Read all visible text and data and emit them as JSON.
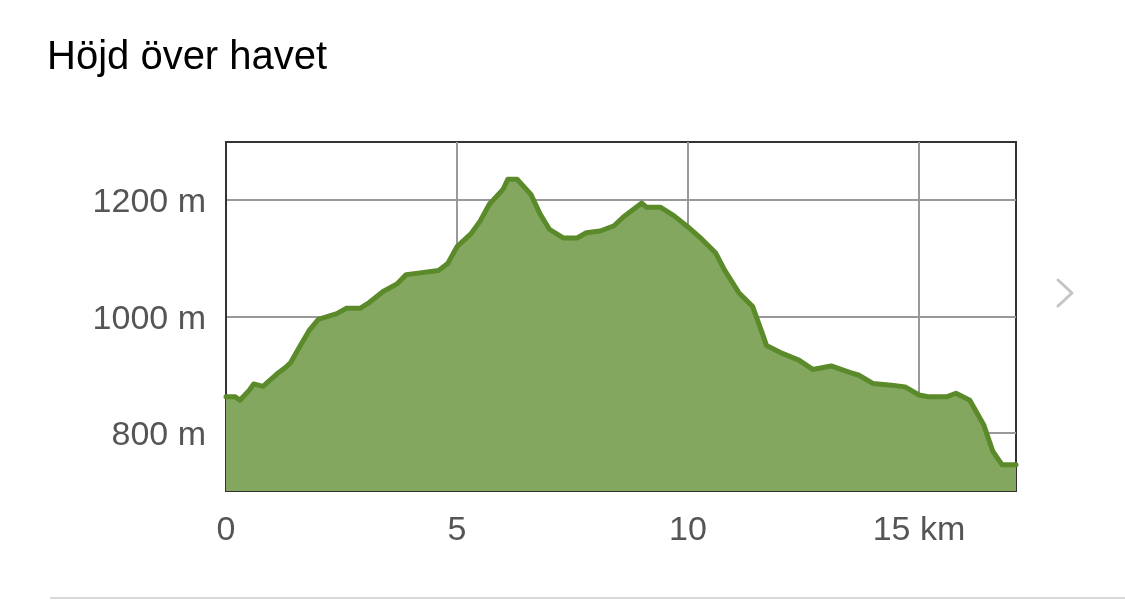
{
  "chart_data": {
    "type": "area",
    "title": "Höjd över havet",
    "x": [
      0,
      0.2,
      0.3,
      0.5,
      0.6,
      0.8,
      1.1,
      1.3,
      1.4,
      1.6,
      1.8,
      2.0,
      2.4,
      2.6,
      2.9,
      3.1,
      3.4,
      3.7,
      3.9,
      4.2,
      4.6,
      4.8,
      5.0,
      5.3,
      5.5,
      5.7,
      6.0,
      6.1,
      6.3,
      6.6,
      6.8,
      7.0,
      7.3,
      7.6,
      7.8,
      8.1,
      8.4,
      8.6,
      9.0,
      9.1,
      9.4,
      9.7,
      10.0,
      10.3,
      10.6,
      10.8,
      11.1,
      11.4,
      11.6,
      11.7,
      12.0,
      12.4,
      12.7,
      13.1,
      13.5,
      13.7,
      14.0,
      14.4,
      14.7,
      15.0,
      15.2,
      15.6,
      15.8,
      16.1,
      16.4,
      16.6,
      16.8,
      17.1
    ],
    "series": [
      {
        "color": "#5a8a2a",
        "values": [
          862,
          862,
          856,
          873,
          884,
          880,
          901,
          913,
          921,
          949,
          976,
          995,
          1005,
          1014,
          1014,
          1024,
          1043,
          1056,
          1072,
          1075,
          1079,
          1091,
          1120,
          1142,
          1164,
          1193,
          1219,
          1236,
          1236,
          1210,
          1176,
          1150,
          1135,
          1135,
          1144,
          1147,
          1156,
          1171,
          1195,
          1188,
          1188,
          1173,
          1154,
          1133,
          1109,
          1079,
          1041,
          1017,
          973,
          950,
          938,
          925,
          909,
          915,
          904,
          899,
          885,
          882,
          879,
          865,
          862,
          862,
          868,
          856,
          814,
          768,
          745,
          745
        ]
      }
    ],
    "xlim": [
      0,
      17.1
    ],
    "ylim": [
      700,
      1300
    ],
    "xticks": [
      {
        "value": 0,
        "label": "0"
      },
      {
        "value": 5,
        "label": "5"
      },
      {
        "value": 10,
        "label": "10"
      },
      {
        "value": 15,
        "label": "15 km"
      }
    ],
    "yticks": [
      {
        "value": 800,
        "label": "800 m"
      },
      {
        "value": 1000,
        "label": "1000 m"
      },
      {
        "value": 1200,
        "label": "1200 m"
      }
    ],
    "grid": true,
    "marker": "none",
    "line_style": "solid"
  }
}
